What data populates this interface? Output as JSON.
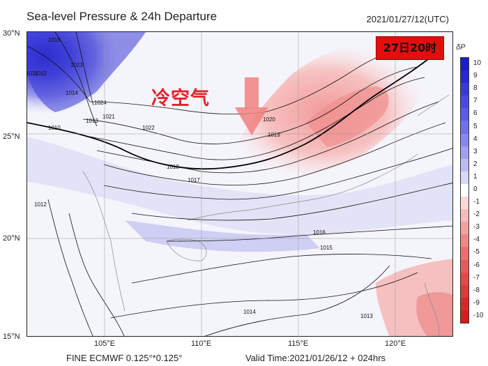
{
  "header": {
    "title": "Sea-level Pressure & 24h Departure",
    "datetime": "2021/01/27/12(UTC)"
  },
  "annotations": {
    "cold_air_label": "冷空气",
    "time_badge": "27日20时",
    "arrow_color": "#f08080",
    "badge_color": "#e50e0e"
  },
  "axes": {
    "lat_labels": [
      "30°N",
      "25°N",
      "20°N",
      "15°N"
    ],
    "lon_labels": [
      "105°E",
      "110°E",
      "115°E",
      "120°E"
    ]
  },
  "footer": {
    "model": "FINE ECMWF 0.125°*0.125°",
    "valid_time": "Valid Time:2021/01/26/12 + 024hrs"
  },
  "colorbar": {
    "title": "δP",
    "levels": [
      "10",
      "9",
      "8",
      "7",
      "6",
      "5",
      "4",
      "3",
      "2",
      "1",
      "0",
      "-1",
      "-2",
      "-3",
      "-4",
      "-5",
      "-6",
      "-7",
      "-8",
      "-9",
      "-10"
    ],
    "colors": [
      "#1c1ccf",
      "#2828d6",
      "#3a3adc",
      "#4a4ae0",
      "#5c5ce4",
      "#7070e8",
      "#8888ec",
      "#a0a0f0",
      "#bcbcf5",
      "#d8d8fa",
      "#ffffff",
      "#fad8d8",
      "#f5bcbc",
      "#f2a0a0",
      "#ee8888",
      "#ea7070",
      "#e65c5c",
      "#e24a4a",
      "#de3a3a",
      "#da2828",
      "#d61c1c"
    ]
  },
  "contour_labels": [
    "1015",
    "1012",
    "1011",
    "1023",
    "1014",
    "1024",
    "1021",
    "1013",
    "1010",
    "1022",
    "1020",
    "1019",
    "1018",
    "1017",
    "1016",
    "1015",
    "1014",
    "1013",
    "1012"
  ]
}
